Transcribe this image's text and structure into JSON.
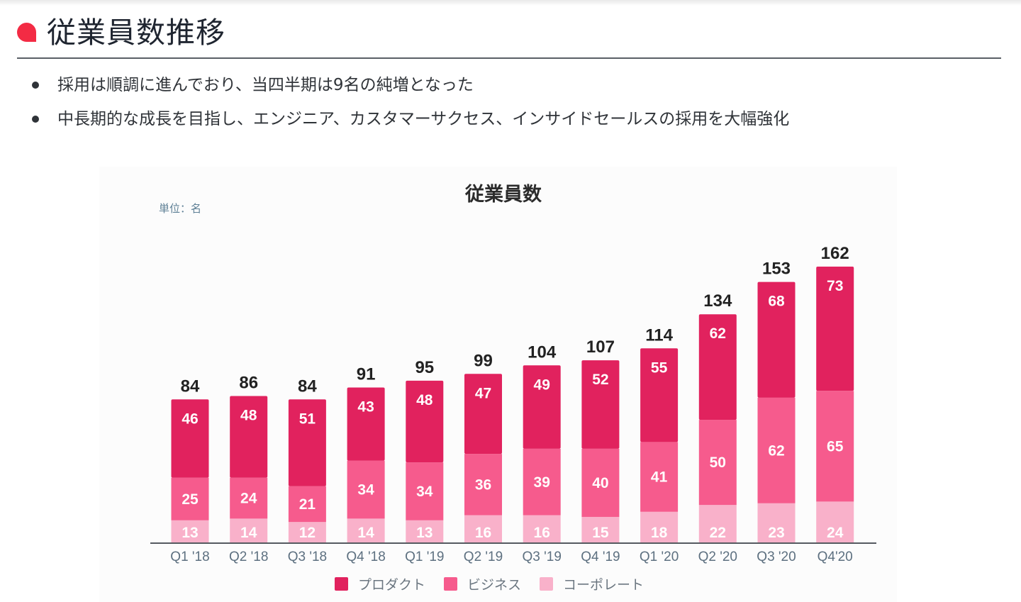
{
  "header": {
    "title": "従業員数推移",
    "accent_color": "#f32b44"
  },
  "bullets": [
    "採用は順調に進んでおり、当四半期は9名の純増となった",
    "中長期的な成長を目指し、エンジニア、カスタマーサクセス、インサイドセールスの採用を大幅強化"
  ],
  "chart_data": {
    "type": "bar",
    "stacked": true,
    "title": "従業員数",
    "unit_label": "単位：名",
    "xlabel": "",
    "ylabel": "",
    "ylim": [
      0,
      162
    ],
    "grid": false,
    "legend_position": "bottom",
    "categories": [
      "Q1 '18",
      "Q2 '18",
      "Q3 '18",
      "Q4 '18",
      "Q1 '19",
      "Q2 '19",
      "Q3 '19",
      "Q4 '19",
      "Q1 '20",
      "Q2 '20",
      "Q3 '20",
      "Q4'20"
    ],
    "series": [
      {
        "name": "コーポレート",
        "color": "#f9b1ca",
        "values": [
          13,
          14,
          12,
          14,
          13,
          16,
          16,
          15,
          18,
          22,
          23,
          24
        ]
      },
      {
        "name": "ビジネス",
        "color": "#f65b8d",
        "values": [
          25,
          24,
          21,
          34,
          34,
          36,
          39,
          40,
          41,
          50,
          62,
          65
        ]
      },
      {
        "name": "プロダクト",
        "color": "#e1225e",
        "values": [
          46,
          48,
          51,
          43,
          48,
          47,
          49,
          52,
          55,
          62,
          68,
          73
        ]
      }
    ],
    "totals": [
      84,
      86,
      84,
      91,
      95,
      99,
      104,
      107,
      114,
      134,
      153,
      162
    ],
    "legend": [
      "プロダクト",
      "ビジネス",
      "コーポレート"
    ]
  }
}
